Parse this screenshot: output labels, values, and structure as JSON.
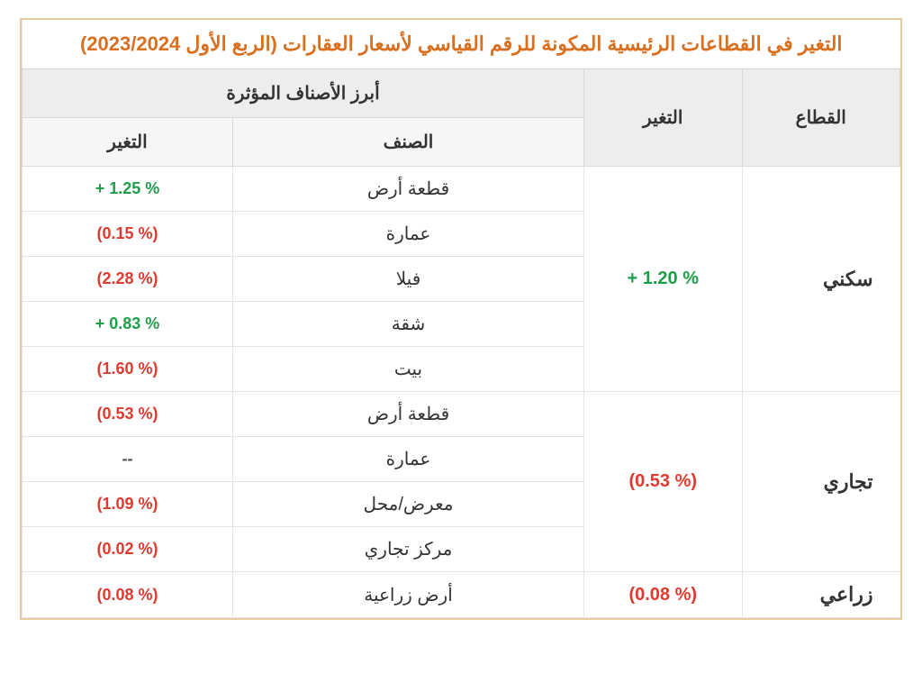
{
  "title": "التغير في القطاعات الرئيسية المكونة للرقم القياسي لأسعار العقارات (الربع الأول 2023/2024)",
  "headers": {
    "sector": "القطاع",
    "change": "التغير",
    "top_items": "أبرز الأصناف المؤثرة",
    "item_name": "الصنف",
    "item_change": "التغير"
  },
  "colors": {
    "title": "#d96f1f",
    "border": "#e8c9a0",
    "header_bg": "#ededed",
    "subheader_bg": "#f6f6f6",
    "grid": "#e4e4e4",
    "positive": "#1f9e4a",
    "negative": "#e03a2f",
    "neutral": "#555555"
  },
  "sectors": [
    {
      "name": "سكني",
      "change": "+ 1.20 %",
      "change_sign": "pos",
      "items": [
        {
          "name": "قطعة أرض",
          "change": "+ 1.25 %",
          "sign": "pos"
        },
        {
          "name": "عمارة",
          "change": "(0.15 %)",
          "sign": "neg"
        },
        {
          "name": "فيلا",
          "change": "(2.28 %)",
          "sign": "neg"
        },
        {
          "name": "شقة",
          "change": "+ 0.83 %",
          "sign": "pos"
        },
        {
          "name": "بيت",
          "change": "(1.60 %)",
          "sign": "neg"
        }
      ]
    },
    {
      "name": "تجاري",
      "change": "(0.53 %)",
      "change_sign": "neg",
      "items": [
        {
          "name": "قطعة أرض",
          "change": "(0.53 %)",
          "sign": "neg"
        },
        {
          "name": "عمارة",
          "change": "--",
          "sign": "neu"
        },
        {
          "name": "معرض/محل",
          "change": "(1.09 %)",
          "sign": "neg"
        },
        {
          "name": "مركز تجاري",
          "change": "(0.02 %)",
          "sign": "neg"
        }
      ]
    },
    {
      "name": "زراعي",
      "change": "(0.08 %)",
      "change_sign": "neg",
      "items": [
        {
          "name": "أرض زراعية",
          "change": "(0.08 %)",
          "sign": "neg"
        }
      ]
    }
  ]
}
